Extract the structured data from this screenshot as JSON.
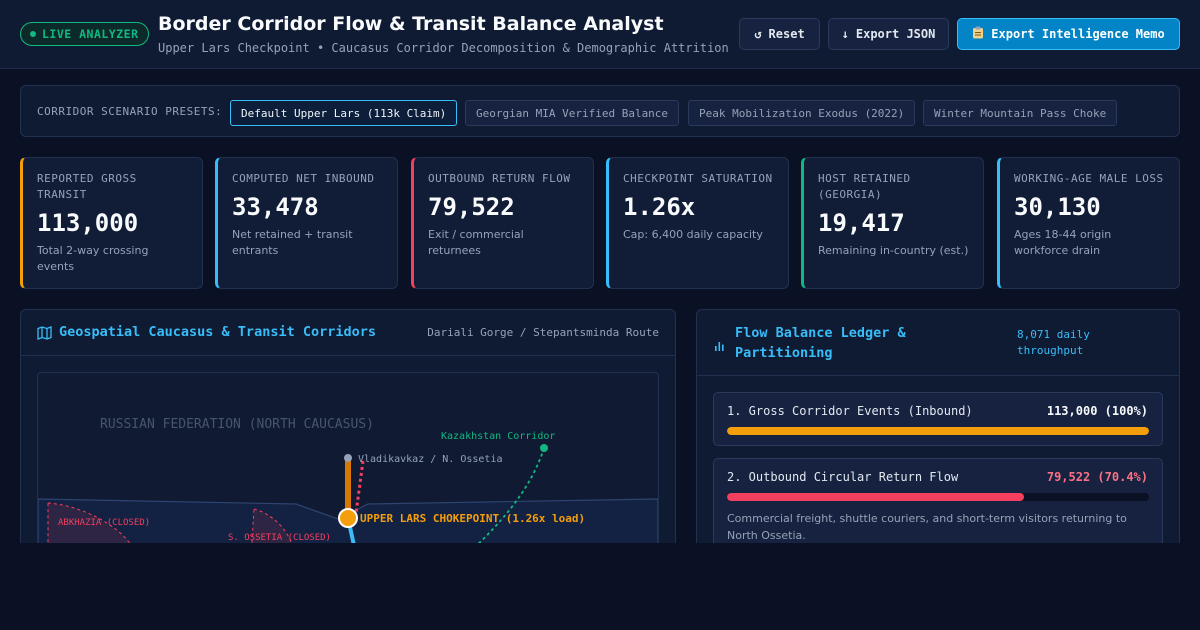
{
  "header": {
    "badge": "LIVE ANALYZER",
    "title": "Border Corridor Flow & Transit Balance Analyst",
    "subtitle": "Upper Lars Checkpoint • Caucasus Corridor Decomposition & Demographic Attrition",
    "buttons": {
      "reset": "Reset",
      "export_json": "Export JSON",
      "export_memo": "Export Intelligence Memo"
    }
  },
  "presets": {
    "label": "CORRIDOR SCENARIO PRESETS:",
    "items": [
      {
        "label": "Default Upper Lars (113k Claim)",
        "active": true
      },
      {
        "label": "Georgian MIA Verified Balance",
        "active": false
      },
      {
        "label": "Peak Mobilization Exodus (2022)",
        "active": false
      },
      {
        "label": "Winter Mountain Pass Choke",
        "active": false
      }
    ]
  },
  "metrics": [
    {
      "label": "REPORTED GROSS TRANSIT",
      "value": "113,000",
      "sub": "Total 2-way crossing events",
      "accent": "#f59e0b"
    },
    {
      "label": "COMPUTED NET INBOUND",
      "value": "33,478",
      "sub": "Net retained + transit entrants",
      "accent": "#38bdf8"
    },
    {
      "label": "OUTBOUND RETURN FLOW",
      "value": "79,522",
      "sub": "Exit / commercial returnees",
      "accent": "#f43f5e"
    },
    {
      "label": "CHECKPOINT SATURATION",
      "value": "1.26x",
      "sub": "Cap: 6,400 daily capacity",
      "accent": "#38bdf8"
    },
    {
      "label": "HOST RETAINED (GEORGIA)",
      "value": "19,417",
      "sub": "Remaining in-country (est.)",
      "accent": "#10b981"
    },
    {
      "label": "WORKING-AGE MALE LOSS",
      "value": "30,130",
      "sub": "Ages 18-44 origin workforce drain",
      "accent": "#38bdf8"
    }
  ],
  "map_panel": {
    "title": "Geospatial Caucasus & Transit Corridors",
    "meta": "Dariali Gorge / Stepantsminda Route",
    "labels": {
      "region": "RUSSIAN FEDERATION (NORTH CAUCASUS)",
      "kazakhstan": "Kazakhstan Corridor",
      "vladikavkaz": "Vladikavkaz / N. Ossetia",
      "chokepoint": "UPPER LARS CHOKEPOINT (1.26x load)",
      "abkhazia": "ABKHAZIA (CLOSED)",
      "ossetia": "S. OSSETIA (CLOSED)"
    }
  },
  "ledger_panel": {
    "title": "Flow Balance Ledger & Partitioning",
    "meta": "8,071 daily throughput",
    "items": [
      {
        "name": "1. Gross Corridor Events (Inbound)",
        "value": "113,000 (100%)",
        "fraction": 1.0,
        "color": "#f59e0b",
        "value_color": "#f8fafc",
        "desc": ""
      },
      {
        "name": "2. Outbound Circular Return Flow",
        "value": "79,522 (70.4%)",
        "fraction": 0.704,
        "color": "#f43f5e",
        "value_color": "#fb7185",
        "desc": "Commercial freight, shuttle couriers, and short-term visitors returning to North Ossetia."
      }
    ]
  },
  "colors": {
    "accent": "#38bdf8",
    "amber": "#f59e0b",
    "red": "#f43f5e",
    "green": "#10b981"
  }
}
